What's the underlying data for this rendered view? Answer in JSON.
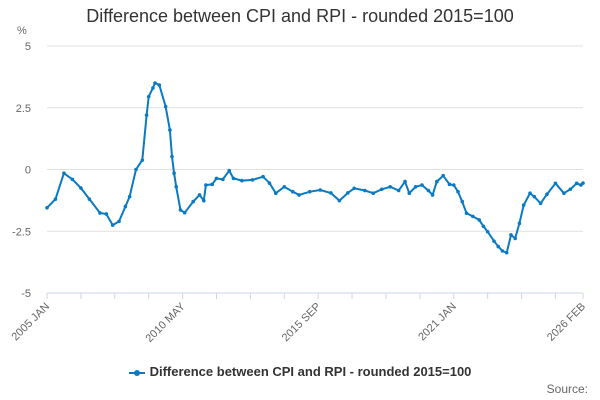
{
  "chart_data": {
    "type": "line",
    "title": "Difference between CPI and RPI - rounded 2015=100",
    "ylabel": "%",
    "xlabel": "",
    "ylim": [
      -5,
      5
    ],
    "yticks": [
      5,
      2.5,
      0,
      -2.5,
      -5
    ],
    "ytick_labels": [
      "5",
      "2.5",
      "0",
      "-2.5",
      "-5"
    ],
    "xtick_labels": [
      "2005 JAN",
      "2010 MAY",
      "2015 SEP",
      "2021 JAN",
      "2026 FEB"
    ],
    "xtick_months": [
      0,
      64,
      128,
      192,
      253
    ],
    "grid": true,
    "legend_position": "bottom",
    "series": [
      {
        "name": "Difference between CPI and RPI - rounded 2015=100",
        "color": "#0a7ac3",
        "month_index": [
          0,
          4,
          8,
          12,
          16,
          20,
          25,
          28,
          31,
          34,
          37,
          39,
          42,
          45,
          47,
          48,
          50,
          51,
          53,
          56,
          58,
          59,
          60,
          61,
          63,
          65,
          69,
          72,
          74,
          75,
          78,
          80,
          83,
          86,
          88,
          92,
          97,
          102,
          105,
          108,
          112,
          116,
          119,
          124,
          129,
          134,
          138,
          142,
          145,
          150,
          154,
          158,
          162,
          166,
          169,
          171,
          174,
          177,
          180,
          182,
          184,
          187,
          190,
          192,
          194,
          196,
          198,
          201,
          204,
          206,
          208,
          211,
          213,
          215,
          217,
          219,
          221,
          223,
          225,
          228,
          230,
          233,
          236,
          240,
          244,
          247,
          250,
          252,
          253
        ],
        "values": [
          -1.55,
          -1.2,
          -0.15,
          -0.4,
          -0.75,
          -1.2,
          -1.76,
          -1.8,
          -2.25,
          -2.1,
          -1.5,
          -1.1,
          0,
          0.38,
          2.2,
          2.95,
          3.3,
          3.5,
          3.42,
          2.55,
          1.6,
          0.52,
          -0.15,
          -0.7,
          -1.64,
          -1.75,
          -1.3,
          -1.03,
          -1.26,
          -0.63,
          -0.6,
          -0.36,
          -0.4,
          -0.05,
          -0.36,
          -0.45,
          -0.42,
          -0.29,
          -0.55,
          -0.96,
          -0.7,
          -0.9,
          -1.03,
          -0.9,
          -0.83,
          -0.95,
          -1.26,
          -0.95,
          -0.76,
          -0.85,
          -0.96,
          -0.8,
          -0.7,
          -0.85,
          -0.49,
          -0.96,
          -0.7,
          -0.63,
          -0.85,
          -1.03,
          -0.49,
          -0.25,
          -0.6,
          -0.63,
          -0.9,
          -1.3,
          -1.77,
          -1.9,
          -2.04,
          -2.3,
          -2.52,
          -2.9,
          -3.12,
          -3.3,
          -3.37,
          -2.65,
          -2.79,
          -2.18,
          -1.44,
          -0.96,
          -1.1,
          -1.37,
          -1.0,
          -0.56,
          -0.96,
          -0.8,
          -0.56,
          -0.63,
          -0.55
        ]
      }
    ],
    "source_label": "Source:"
  }
}
